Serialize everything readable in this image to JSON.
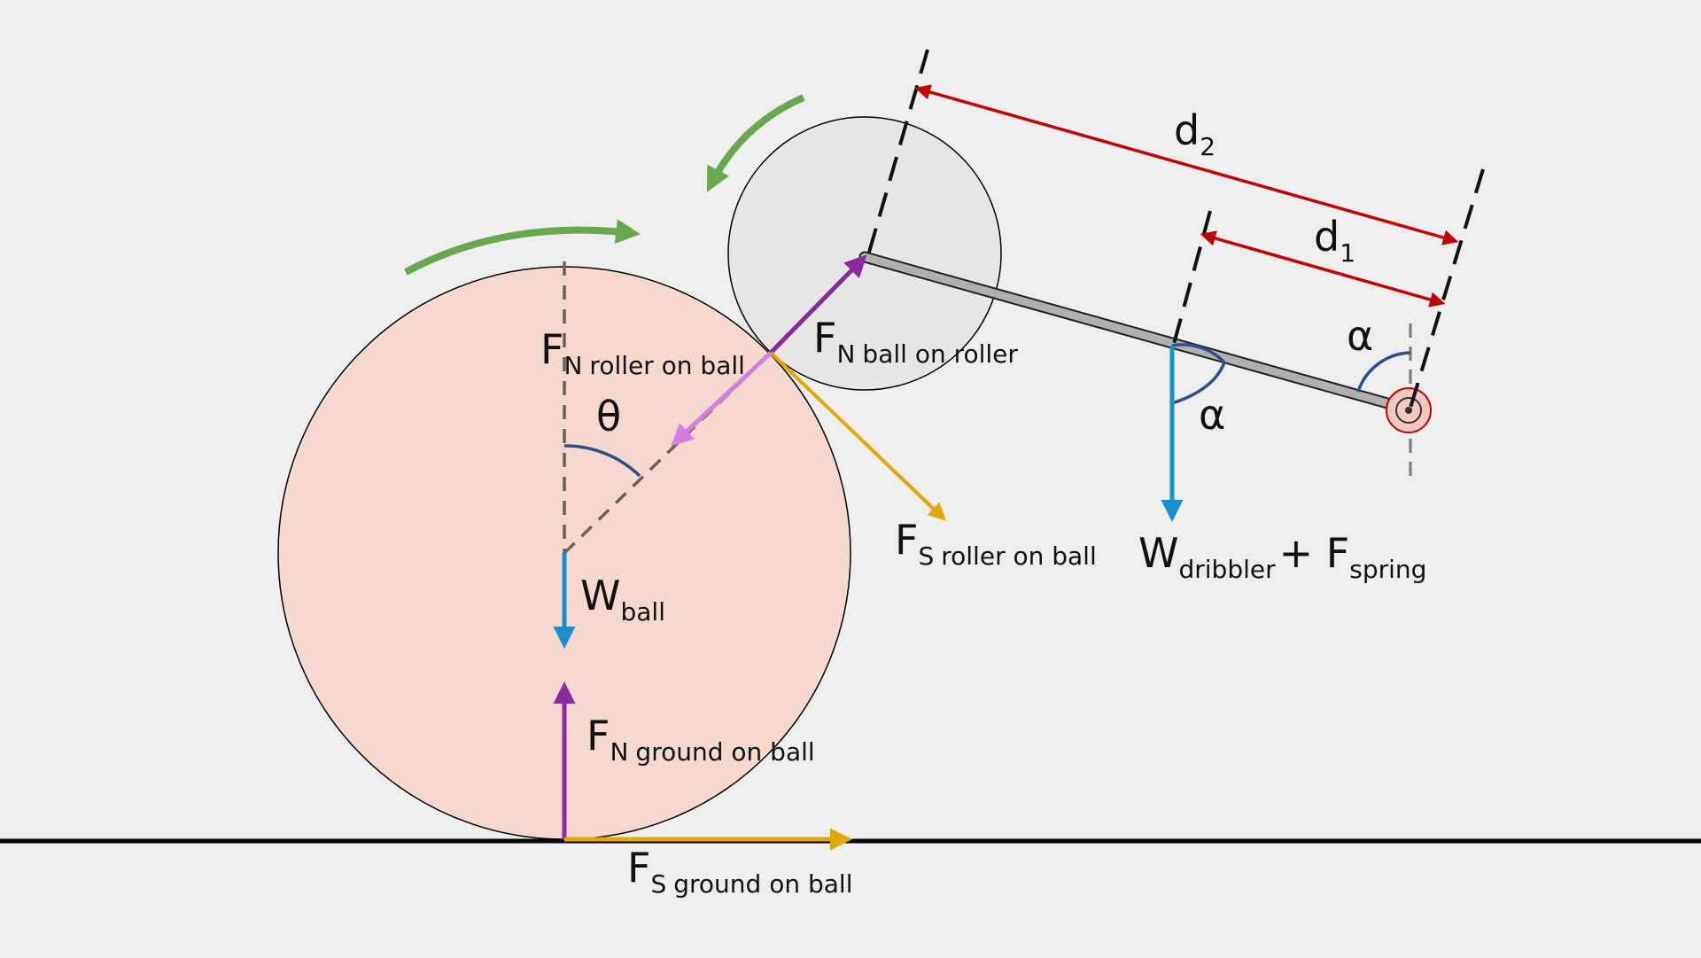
{
  "labels": {
    "fn_roller_on_ball": {
      "main": "F",
      "sub_letter": "N",
      "sub": "roller on ball"
    },
    "fn_ball_on_roller": {
      "main": "F",
      "sub_letter": "N",
      "sub": "ball on roller"
    },
    "fs_roller_on_ball": {
      "main": "F",
      "sub_letter": "S",
      "sub": "roller on ball"
    },
    "w_ball": {
      "main": "W",
      "sub": "ball"
    },
    "fn_ground_on_ball": {
      "main": "F",
      "sub_letter": "N",
      "sub": "ground on ball"
    },
    "fs_ground_on_ball": {
      "main": "F",
      "sub_letter": "S",
      "sub": "ground on ball"
    },
    "w_dribbler": {
      "main": "W",
      "sub": "dribbler",
      "plus": "+ F",
      "sub2": "spring"
    },
    "theta": "θ",
    "alpha_1": "α",
    "alpha_2": "α",
    "d1": {
      "main": "d",
      "sub": "1"
    },
    "d2": {
      "main": "d",
      "sub": "2"
    }
  },
  "colors": {
    "background": "#eeeeee",
    "ball_fill": "#f5d9cf",
    "roller_fill": "#e6e6e6",
    "normal_force": "#8a2a9e",
    "normal_force_light": "#d47fdd",
    "friction_force": "#e2a800",
    "weight": "#1a8fcf",
    "dimension": "#c00000",
    "rotation": "#6aa84f",
    "angle_arc": "#2e4d8f",
    "arm": "#b0b0b0"
  }
}
